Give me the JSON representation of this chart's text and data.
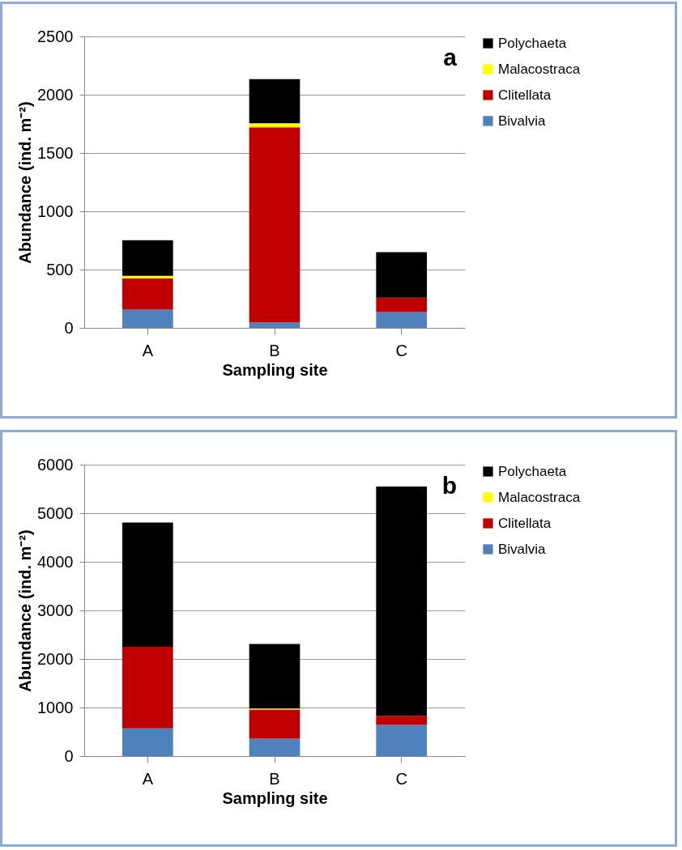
{
  "chart_data": [
    {
      "type": "bar",
      "stacked": true,
      "xlabel": "Sampling site",
      "ylabel": "Abundance (ind. m⁻²)",
      "annotations": [
        "a"
      ],
      "categories": [
        "A",
        "B",
        "C"
      ],
      "series": [
        {
          "name": "Bivalvia",
          "color": "#4f81bd",
          "values": [
            156,
            47,
            135
          ]
        },
        {
          "name": "Clitellata",
          "color": "#c00000",
          "values": [
            267,
            1673,
            123
          ]
        },
        {
          "name": "Malacostraca",
          "color": "#ffff00",
          "values": [
            24,
            35,
            0
          ]
        },
        {
          "name": "Polychaeta",
          "color": "#000000",
          "values": [
            305,
            379,
            391
          ]
        }
      ],
      "ylim": [
        0,
        2500
      ],
      "yticks": [
        0,
        500,
        1000,
        1500,
        2000,
        2500
      ],
      "grid": "y",
      "legend": "right"
    },
    {
      "type": "bar",
      "stacked": true,
      "xlabel": "Sampling site",
      "ylabel": "Abundance (ind. m⁻²)",
      "annotations": [
        "b"
      ],
      "categories": [
        "A",
        "B",
        "C"
      ],
      "series": [
        {
          "name": "Bivalvia",
          "color": "#4f81bd",
          "values": [
            570,
            360,
            640
          ]
        },
        {
          "name": "Clitellata",
          "color": "#c00000",
          "values": [
            1680,
            600,
            190
          ]
        },
        {
          "name": "Malacostraca",
          "color": "#ffff00",
          "values": [
            0,
            20,
            0
          ]
        },
        {
          "name": "Polychaeta",
          "color": "#000000",
          "values": [
            2560,
            1330,
            4720
          ]
        }
      ],
      "ylim": [
        0,
        6000
      ],
      "yticks": [
        0,
        1000,
        2000,
        3000,
        4000,
        5000,
        6000
      ],
      "grid": "y",
      "legend": "right"
    }
  ]
}
